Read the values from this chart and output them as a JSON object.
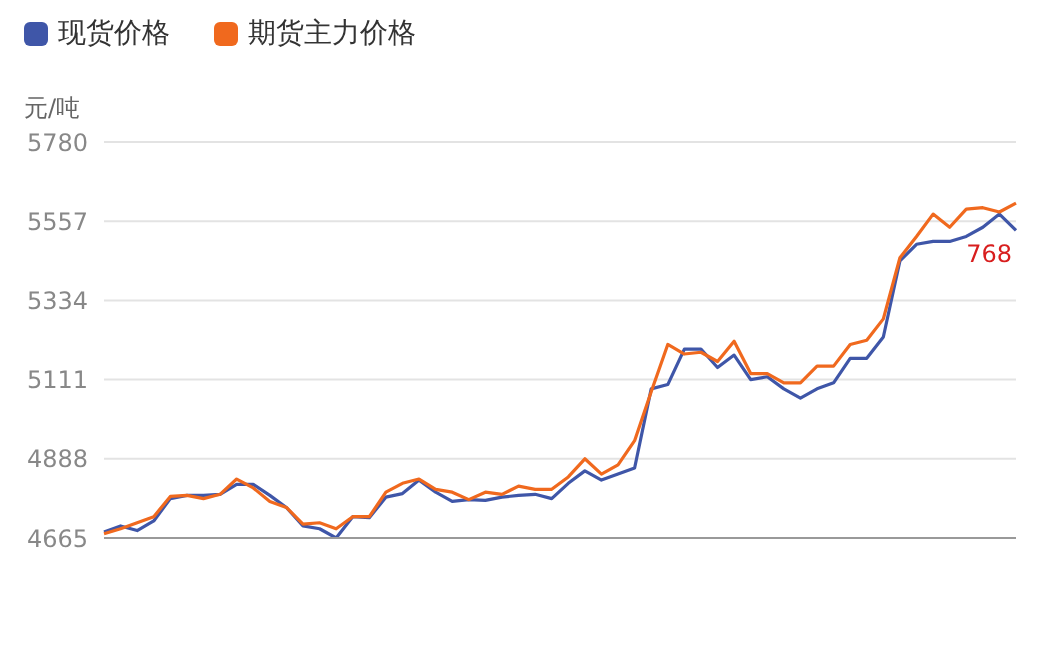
{
  "chart_data": {
    "type": "line",
    "ylabel": "元/吨",
    "legend": "top left",
    "grid": "y",
    "tick_labels": "y",
    "marker": "none",
    "line_style": "solid",
    "categories": [
      null,
      null,
      null,
      null,
      null,
      null,
      null,
      null,
      null,
      null,
      null,
      null,
      null,
      null,
      null,
      null,
      null,
      null,
      null,
      null,
      null,
      null,
      null,
      null,
      null,
      null,
      null,
      null,
      null,
      null,
      null,
      null,
      null,
      null,
      null,
      null,
      null,
      null,
      null,
      null,
      null,
      null,
      null,
      null,
      null,
      null,
      null,
      null,
      null,
      null,
      null,
      null,
      null,
      null,
      null,
      null
    ],
    "ylim": [
      4665,
      5780
    ],
    "yticks": [
      4665,
      4888,
      5111,
      5334,
      5557,
      5780
    ],
    "annotations": [
      "768"
    ],
    "series": [
      {
        "name": "现货价格",
        "color": "#3f56a8",
        "values": [
          4682,
          4699,
          4686,
          4713,
          4776,
          4785,
          4785,
          4788,
          4816,
          4816,
          4785,
          4751,
          4699,
          4691,
          4665,
          4725,
          4722,
          4780,
          4790,
          4828,
          4794,
          4768,
          4773,
          4771,
          4780,
          4785,
          4788,
          4776,
          4819,
          4854,
          4828,
          4845,
          4862,
          5085,
          5097,
          5197,
          5197,
          5145,
          5180,
          5111,
          5119,
          5085,
          5059,
          5085,
          5102,
          5171,
          5171,
          5231,
          5445,
          5492,
          5500,
          5500,
          5514,
          5540,
          5577,
          5531
        ]
      },
      {
        "name": "期货主力价格",
        "color": "#f0691e",
        "values": [
          4677,
          4691,
          4708,
          4725,
          4782,
          4785,
          4776,
          4788,
          4831,
          4806,
          4768,
          4751,
          4704,
          4708,
          4691,
          4725,
          4725,
          4794,
          4819,
          4831,
          4802,
          4794,
          4773,
          4794,
          4788,
          4811,
          4802,
          4802,
          4837,
          4888,
          4845,
          4871,
          4939,
          5077,
          5210,
          5183,
          5188,
          5162,
          5219,
          5128,
          5128,
          5102,
          5102,
          5149,
          5149,
          5210,
          5222,
          5282,
          5454,
          5514,
          5577,
          5540,
          5591,
          5595,
          5583,
          5608
        ]
      }
    ]
  }
}
